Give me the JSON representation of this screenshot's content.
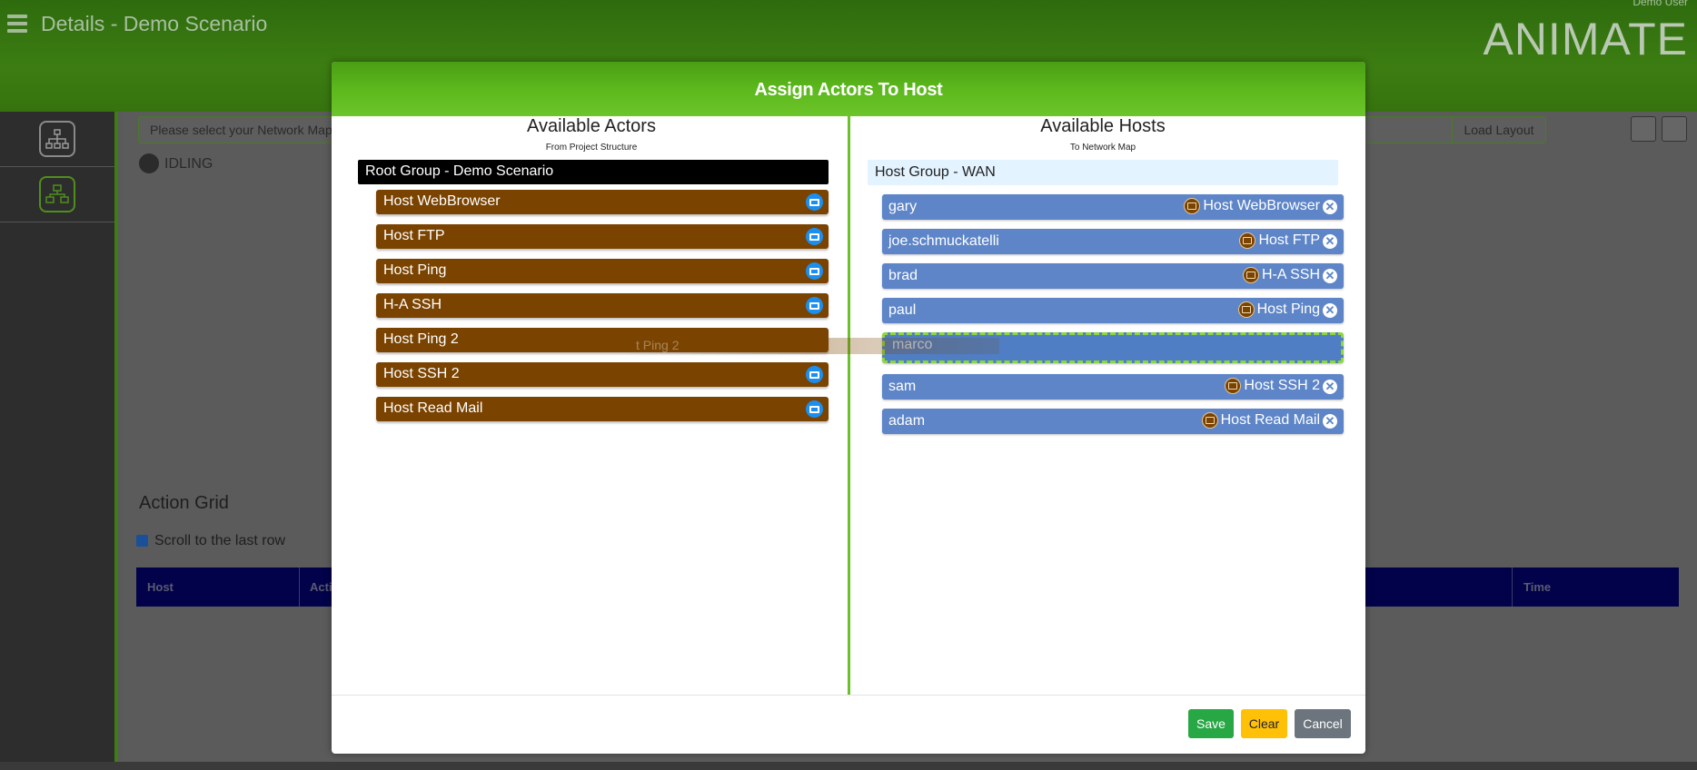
{
  "app": {
    "title": "Details - Demo Scenario",
    "user": "Demo User",
    "brand": "ANIMATE"
  },
  "toolbar": {
    "map_placeholder": "Please select your Network Map",
    "load_layout": "Load Layout",
    "status": "IDLING"
  },
  "action_grid": {
    "title": "Action Grid",
    "scroll_label": "Scroll to the last row",
    "scroll_checked": true,
    "columns": [
      "Host",
      "Acti",
      "Time"
    ]
  },
  "modal": {
    "title": "Assign Actors To Host",
    "left": {
      "title": "Available Actors",
      "subtitle": "From Project Structure",
      "group": "Root Group - Demo Scenario",
      "actors": [
        {
          "name": "Host WebBrowser",
          "icon": "computer-icon"
        },
        {
          "name": "Host FTP",
          "icon": "computer-icon"
        },
        {
          "name": "Host Ping",
          "icon": "computer-icon"
        },
        {
          "name": "H-A SSH",
          "icon": "computer-icon"
        },
        {
          "name": "Host Ping 2",
          "icon": ""
        },
        {
          "name": "Host SSH 2",
          "icon": "computer-icon"
        },
        {
          "name": "Host Read Mail",
          "icon": "computer-icon"
        }
      ]
    },
    "right": {
      "title": "Available Hosts",
      "subtitle": "To Network Map",
      "group": "Host Group - WAN",
      "hosts": [
        {
          "name": "gary",
          "assigned": "Host WebBrowser"
        },
        {
          "name": "joe.schmuckatelli",
          "assigned": "Host FTP"
        },
        {
          "name": "brad",
          "assigned": "H-A SSH"
        },
        {
          "name": "paul",
          "assigned": "Host Ping"
        },
        {
          "name": "marco",
          "assigned": ""
        },
        {
          "name": "sam",
          "assigned": "Host SSH 2"
        },
        {
          "name": "adam",
          "assigned": "Host Read Mail"
        }
      ]
    },
    "drag_ghost": "t Ping 2",
    "buttons": {
      "save": "Save",
      "clear": "Clear",
      "cancel": "Cancel"
    }
  },
  "colors": {
    "header_green": "#3c7d12",
    "actor_brown": "#7a4300",
    "host_blue": "#5d85c8",
    "save_green": "#28a745",
    "clear_yellow": "#ffc107",
    "cancel_gray": "#6c757d"
  }
}
